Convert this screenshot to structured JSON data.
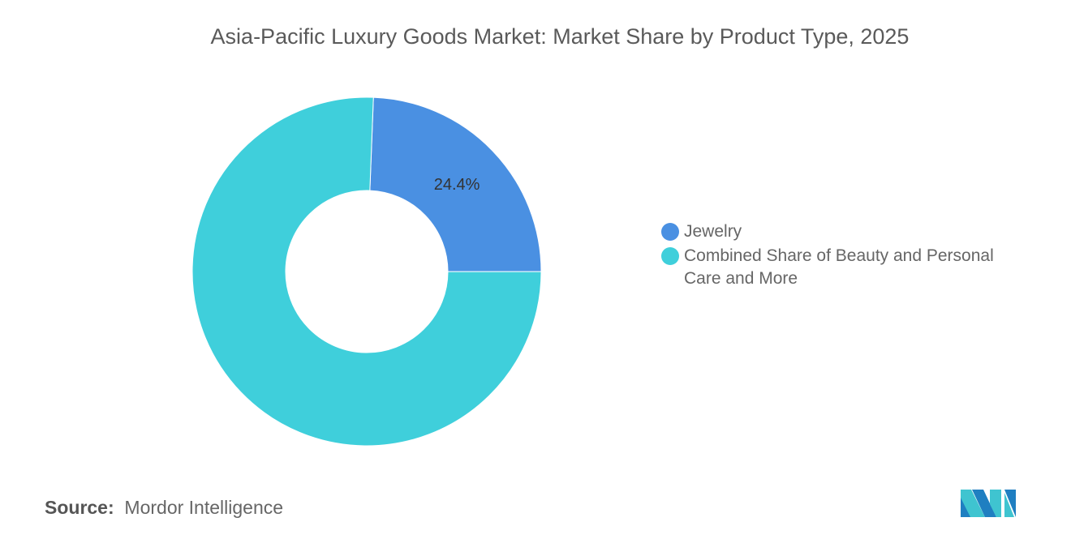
{
  "chart_data": {
    "type": "pie",
    "donut": true,
    "title": "Asia-Pacific Luxury Goods Market: Market Share by Product Type, 2025",
    "categories": [
      "Jewelry",
      "Combined Share of Beauty and Personal Care and More"
    ],
    "values": [
      24.4,
      75.6
    ],
    "colors": [
      "#4a90e2",
      "#3fcfdb"
    ],
    "data_labels": [
      "24.4%",
      ""
    ],
    "legend_position": "right"
  },
  "source": {
    "label": "Source:",
    "text": "Mordor Intelligence"
  },
  "logo": {
    "name": "mordor-intelligence-logo",
    "colors": [
      "#1f7fc1",
      "#3fc4d0"
    ]
  }
}
